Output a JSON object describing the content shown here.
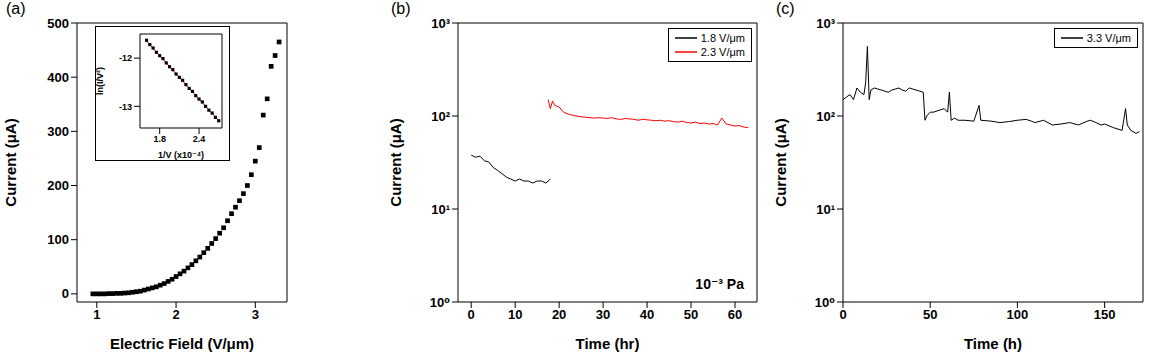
{
  "chart_data": [
    {
      "type": "scatter",
      "title": "(a)",
      "x_label": "Electric Field (V/μm)",
      "y_label": "Current (μA)",
      "xlim": [
        0.75,
        3.4
      ],
      "xticks": [
        1,
        2,
        3
      ],
      "ylim": [
        -15,
        500
      ],
      "yticks": [
        0,
        100,
        200,
        300,
        400,
        500
      ],
      "marker": "square",
      "color": "#000000",
      "x": [
        0.95,
        1.0,
        1.05,
        1.1,
        1.15,
        1.2,
        1.25,
        1.3,
        1.35,
        1.4,
        1.45,
        1.5,
        1.55,
        1.6,
        1.65,
        1.7,
        1.75,
        1.8,
        1.85,
        1.9,
        1.95,
        2.0,
        2.05,
        2.1,
        2.15,
        2.2,
        2.25,
        2.3,
        2.35,
        2.4,
        2.45,
        2.5,
        2.55,
        2.6,
        2.65,
        2.7,
        2.75,
        2.8,
        2.85,
        2.9,
        2.95,
        3.0,
        3.05,
        3.1,
        3.15,
        3.2,
        3.25,
        3.3
      ],
      "values": [
        0,
        0,
        0,
        0,
        0.5,
        0.5,
        1,
        1,
        1.5,
        2,
        3,
        4,
        5,
        7,
        9,
        11,
        13,
        16,
        19,
        23,
        27,
        32,
        37,
        42,
        48,
        54,
        61,
        68,
        76,
        84,
        93,
        102,
        112,
        122,
        135,
        148,
        160,
        172,
        185,
        200,
        220,
        245,
        270,
        330,
        360,
        420,
        440,
        465
      ]
    },
    {
      "type": "scatter",
      "x_label": "1/V (x10⁻⁴)",
      "y_label": "ln(I/V²)",
      "xlim": [
        1.5,
        2.75
      ],
      "xticks": [
        1.8,
        2.4
      ],
      "ylim": [
        -13.45,
        -11.5
      ],
      "yticks": [
        -13,
        -12
      ],
      "series": [
        {
          "type": "scatter",
          "marker": "square",
          "color": "#000000",
          "x": [
            1.6,
            1.65,
            1.7,
            1.75,
            1.8,
            1.85,
            1.9,
            1.95,
            2.0,
            2.05,
            2.1,
            2.15,
            2.2,
            2.25,
            2.3,
            2.35,
            2.4,
            2.45,
            2.5,
            2.55,
            2.6,
            2.65,
            2.7
          ],
          "values": [
            -11.63,
            -11.72,
            -11.79,
            -11.88,
            -11.95,
            -12.01,
            -12.1,
            -12.18,
            -12.24,
            -12.33,
            -12.4,
            -12.46,
            -12.55,
            -12.63,
            -12.69,
            -12.78,
            -12.85,
            -12.91,
            -13.0,
            -13.08,
            -13.14,
            -13.23,
            -13.3
          ]
        },
        {
          "type": "line",
          "color": "#ff0000",
          "x": [
            1.6,
            2.7
          ],
          "values": [
            -11.65,
            -13.3
          ]
        }
      ]
    },
    {
      "type": "line",
      "title": "(b)",
      "x_label": "Time (hr)",
      "y_label": "Current (μA)",
      "log": "y",
      "legend": "top-right",
      "annotations": [
        "10⁻³ Pa"
      ],
      "xlim": [
        -3,
        65
      ],
      "xticks": [
        0,
        10,
        20,
        30,
        40,
        50,
        60
      ],
      "ylim": [
        1,
        1000
      ],
      "yticks": [
        {
          "value": 1,
          "label": "10⁰"
        },
        {
          "value": 10,
          "label": "10¹"
        },
        {
          "value": 100,
          "label": "10²"
        },
        {
          "value": 1000,
          "label": "10³"
        }
      ],
      "series": [
        {
          "name": "1.8 V/μm",
          "color": "#000000",
          "x": [
            0,
            1,
            2,
            3,
            4,
            5,
            6,
            7,
            8,
            9,
            10,
            11,
            12,
            13,
            14,
            15,
            16,
            17,
            18
          ],
          "values": [
            38,
            36,
            37,
            33,
            32,
            28,
            26,
            24,
            22,
            21,
            20,
            21,
            20,
            20,
            19,
            20,
            20,
            19,
            21
          ]
        },
        {
          "name": "2.3 V/μm",
          "color": "#ff0000",
          "x": [
            17.5,
            18,
            18.5,
            19,
            20,
            21,
            22,
            23,
            24,
            25,
            26,
            27,
            28,
            29,
            30,
            31,
            32,
            33,
            34,
            35,
            36,
            37,
            38,
            39,
            40,
            41,
            42,
            43,
            44,
            45,
            46,
            47,
            48,
            49,
            50,
            51,
            52,
            53,
            54,
            55,
            56,
            57,
            58,
            59,
            60,
            61,
            62,
            63
          ],
          "values": [
            150,
            120,
            145,
            130,
            125,
            110,
            105,
            102,
            100,
            98,
            97,
            96,
            95,
            96,
            95,
            94,
            96,
            93,
            92,
            94,
            93,
            92,
            90,
            92,
            91,
            90,
            89,
            90,
            88,
            89,
            87,
            86,
            88,
            85,
            84,
            86,
            83,
            84,
            82,
            83,
            80,
            95,
            82,
            80,
            78,
            79,
            76,
            75
          ]
        }
      ]
    },
    {
      "type": "line",
      "title": "(c)",
      "x_label": "Time (h)",
      "y_label": "Current (μA)",
      "log": "y",
      "legend": "top-right",
      "xlim": [
        0,
        172
      ],
      "xticks": [
        0,
        50,
        100,
        150
      ],
      "ylim": [
        1,
        1000
      ],
      "yticks": [
        {
          "value": 1,
          "label": "10⁰"
        },
        {
          "value": 10,
          "label": "10¹"
        },
        {
          "value": 100,
          "label": "10²"
        },
        {
          "value": 1000,
          "label": "10³"
        }
      ],
      "series": [
        {
          "name": "3.3 V/μm",
          "color": "#000000",
          "x": [
            0,
            2,
            4,
            6,
            8,
            10,
            12,
            13,
            14,
            15,
            16,
            18,
            20,
            22,
            24,
            26,
            28,
            30,
            32,
            34,
            36,
            38,
            40,
            42,
            44,
            46,
            47,
            48,
            50,
            52,
            55,
            58,
            60,
            61,
            62,
            64,
            66,
            70,
            75,
            78,
            79,
            85,
            90,
            95,
            100,
            105,
            108,
            110,
            115,
            120,
            125,
            130,
            135,
            140,
            142,
            145,
            148,
            150,
            155,
            160,
            162,
            163,
            165,
            168,
            170
          ],
          "values": [
            150,
            160,
            170,
            150,
            200,
            180,
            170,
            230,
            560,
            150,
            190,
            200,
            195,
            190,
            185,
            180,
            190,
            195,
            200,
            190,
            185,
            200,
            195,
            190,
            185,
            180,
            90,
            100,
            110,
            110,
            115,
            120,
            110,
            180,
            90,
            95,
            90,
            90,
            88,
            130,
            90,
            88,
            85,
            87,
            90,
            92,
            88,
            85,
            90,
            80,
            82,
            85,
            80,
            88,
            90,
            85,
            80,
            82,
            75,
            70,
            120,
            80,
            70,
            65,
            68
          ]
        }
      ]
    }
  ]
}
